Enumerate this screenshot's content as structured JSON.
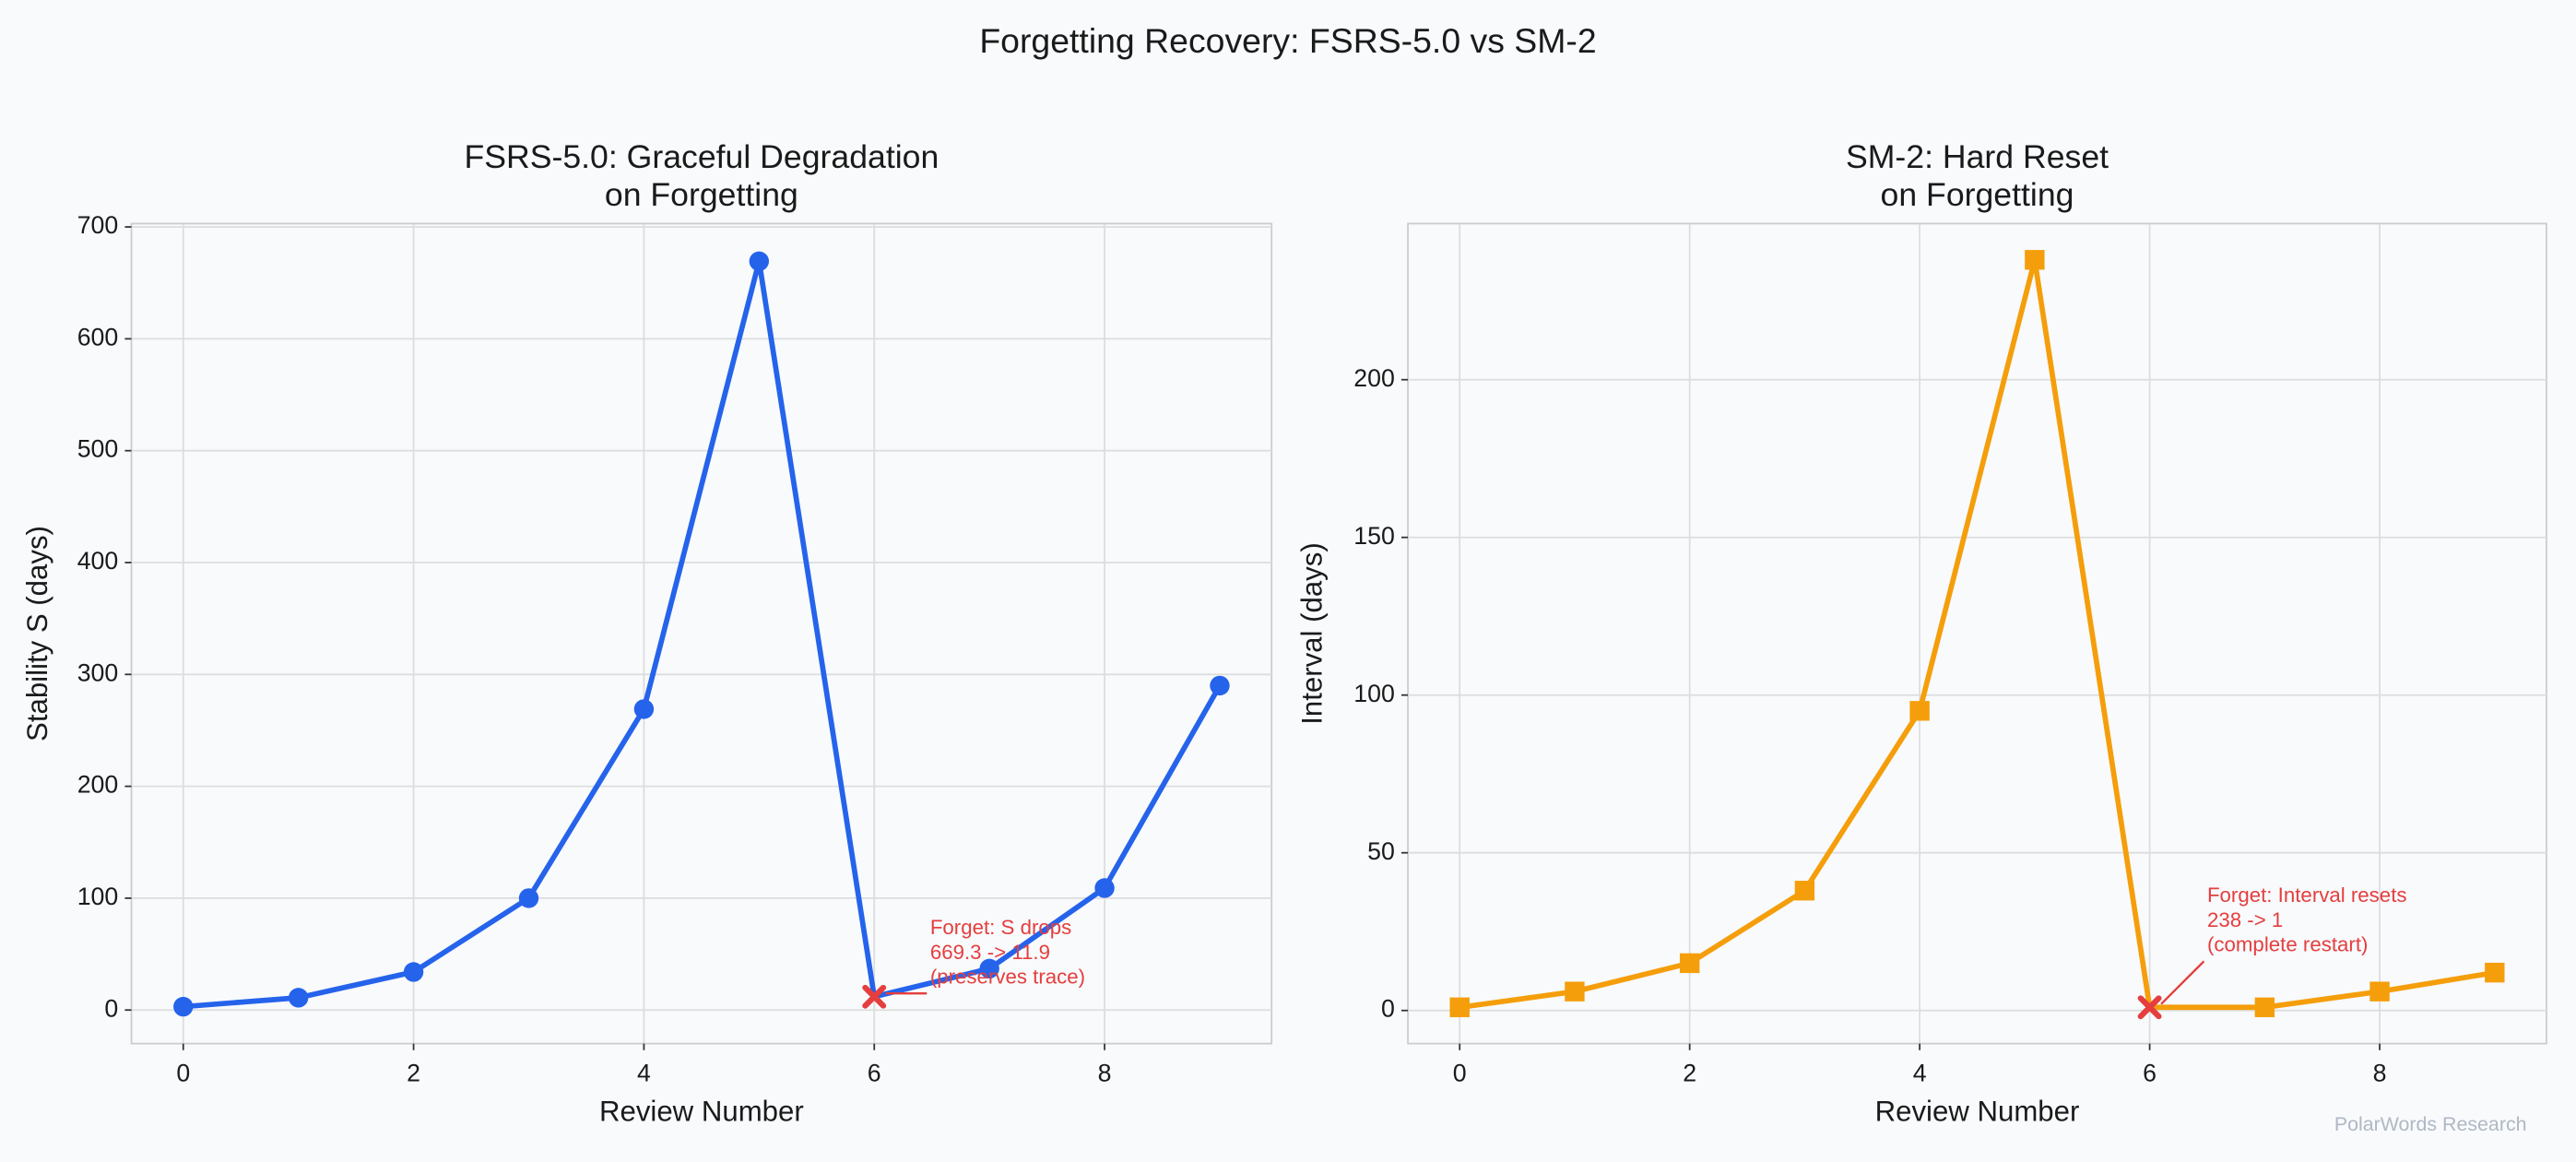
{
  "title": "Forgetting Recovery: FSRS-5.0 vs SM-2",
  "watermark": "PolarWords Research",
  "chart_data": [
    {
      "type": "line",
      "title": [
        "FSRS-5.0: Graceful Degradation",
        "on Forgetting"
      ],
      "x_label": "Review Number",
      "y_label": "Stability S (days)",
      "x": [
        0,
        1,
        2,
        3,
        4,
        5,
        6,
        7,
        8,
        9
      ],
      "values": [
        3,
        11,
        34,
        100,
        269,
        669.3,
        11.9,
        37,
        109,
        290
      ],
      "color": "#2563eb",
      "marker": "circle",
      "highlight_index": 6,
      "highlight_color": "#e53e3e",
      "annotation": {
        "lines": [
          "Forget: S drops",
          "669.3 -> 11.9",
          "(preserves trace)"
        ],
        "index": 6
      },
      "xlim": [
        -0.45,
        9.45
      ],
      "ylim": [
        -30,
        703
      ],
      "xticks": [
        0,
        2,
        4,
        6,
        8
      ],
      "yticks": [
        0,
        100,
        200,
        300,
        400,
        500,
        600,
        700
      ],
      "grid": true
    },
    {
      "type": "line",
      "title": [
        "SM-2: Hard Reset",
        "on Forgetting"
      ],
      "x_label": "Review Number",
      "y_label": "Interval (days)",
      "x": [
        0,
        1,
        2,
        3,
        4,
        5,
        6,
        7,
        8,
        9
      ],
      "values": [
        1,
        6,
        15,
        38,
        95,
        238,
        1,
        1,
        6,
        12
      ],
      "color": "#f59e0b",
      "marker": "square",
      "highlight_index": 6,
      "highlight_color": "#e53e3e",
      "annotation": {
        "lines": [
          "Forget: Interval resets",
          "238 -> 1",
          "(complete restart)"
        ],
        "index": 6
      },
      "xlim": [
        -0.45,
        9.45
      ],
      "ylim": [
        -10.5,
        249.5
      ],
      "xticks": [
        0,
        2,
        4,
        6,
        8
      ],
      "yticks": [
        0,
        50,
        100,
        150,
        200
      ],
      "grid": true
    }
  ]
}
